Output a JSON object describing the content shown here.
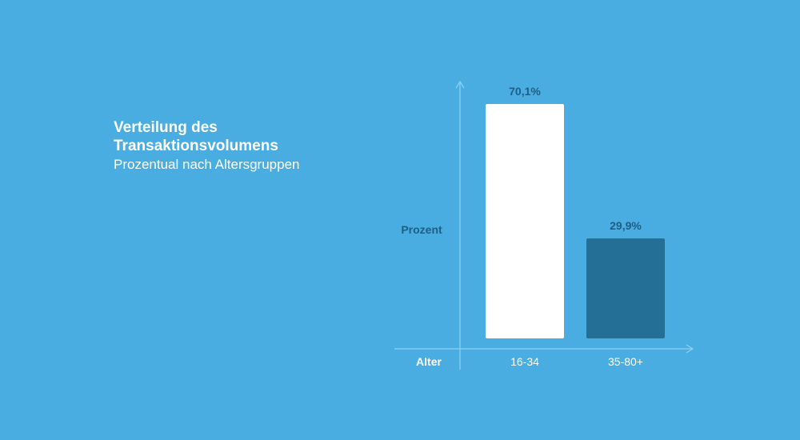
{
  "chart_data": {
    "type": "bar",
    "title": "Verteilung des Transaktionsvolumens",
    "subtitle": "Prozentual nach Altersgruppen",
    "xlabel": "Alter",
    "ylabel": "Prozent",
    "categories": [
      "16-34",
      "35-80+"
    ],
    "values": [
      70.1,
      29.9
    ],
    "value_labels": [
      "70,1%",
      "29,9%"
    ],
    "bar_colors": [
      "#ffffff",
      "#236f96"
    ],
    "ylim": [
      0,
      80
    ],
    "grid": false,
    "legend": "none"
  },
  "colors": {
    "background": "#4aade1",
    "axis": "#8fd0f2",
    "label_dark": "#1f5e84",
    "label_light": "#ffffff"
  }
}
